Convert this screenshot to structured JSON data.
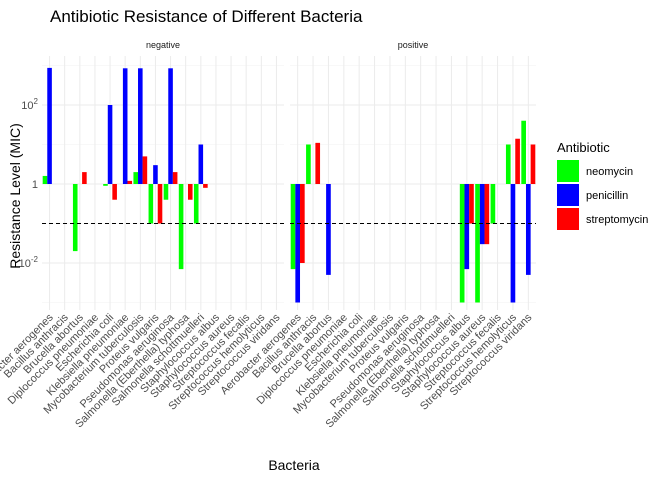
{
  "chart_data": {
    "type": "bar",
    "title": "Antibiotic Resistance of Different Bacteria",
    "xlabel": "Bacteria",
    "ylabel": "Resistance Level (MIC)",
    "y_scale": "log10",
    "y_baseline": 1,
    "y_range": [
      0.0005,
      2000
    ],
    "y_ticks": [
      {
        "value": 0.01,
        "base": "10",
        "exp": "-2"
      },
      {
        "value": 1,
        "label": "1"
      },
      {
        "value": 100,
        "base": "10",
        "exp": "2"
      }
    ],
    "reference_line": {
      "value": 0.1,
      "style": "dashed"
    },
    "grid": true,
    "legend": {
      "title": "Antibiotic",
      "position": "right"
    },
    "series_colors": {
      "neomycin": "#00ff00",
      "penicillin": "#0000ff",
      "streptomycin": "#ff0000"
    },
    "categories": [
      "Aerobacter aerogenes",
      "Bacillus anthracis",
      "Brucella abortus",
      "Diplococcus pneumoniae",
      "Escherichia coli",
      "Klebsiella pneumoniae",
      "Mycobacterium tuberculosis",
      "Proteus vulgaris",
      "Pseudomonas aeruginosa",
      "Salmonella (Eberthella) typhosa",
      "Salmonella schottmuelleri",
      "Staphylococcus albus",
      "Staphylococcus aureus",
      "Streptococcus fecalis",
      "Streptococcus hemolyticus",
      "Streptococcus viridans"
    ],
    "panels": [
      {
        "name": "negative",
        "series": [
          {
            "name": "neomycin",
            "values": [
              1.6,
              null,
              0.02,
              null,
              0.9,
              null,
              2,
              0.1,
              0.4,
              0.007,
              0.1,
              null,
              null,
              null,
              null,
              null
            ]
          },
          {
            "name": "penicillin",
            "values": [
              870,
              null,
              null,
              null,
              100,
              850,
              850,
              3,
              850,
              null,
              10,
              null,
              null,
              null,
              null,
              null
            ]
          },
          {
            "name": "streptomycin",
            "values": [
              null,
              null,
              2,
              null,
              0.4,
              1.2,
              5,
              0.1,
              2,
              0.4,
              0.8,
              null,
              null,
              null,
              null,
              null
            ]
          }
        ]
      },
      {
        "name": "positive",
        "series": [
          {
            "name": "neomycin",
            "values": [
              0.007,
              10,
              null,
              null,
              null,
              null,
              null,
              null,
              null,
              null,
              null,
              0.001,
              0.001,
              0.1,
              10,
              40
            ]
          },
          {
            "name": "penicillin",
            "values": [
              0.001,
              null,
              0.005,
              null,
              null,
              null,
              null,
              null,
              null,
              null,
              null,
              0.007,
              0.03,
              null,
              0.001,
              0.005
            ]
          },
          {
            "name": "streptomycin",
            "values": [
              0.01,
              11,
              null,
              null,
              null,
              null,
              null,
              null,
              null,
              null,
              null,
              0.1,
              0.03,
              null,
              14,
              10
            ]
          }
        ]
      }
    ]
  }
}
